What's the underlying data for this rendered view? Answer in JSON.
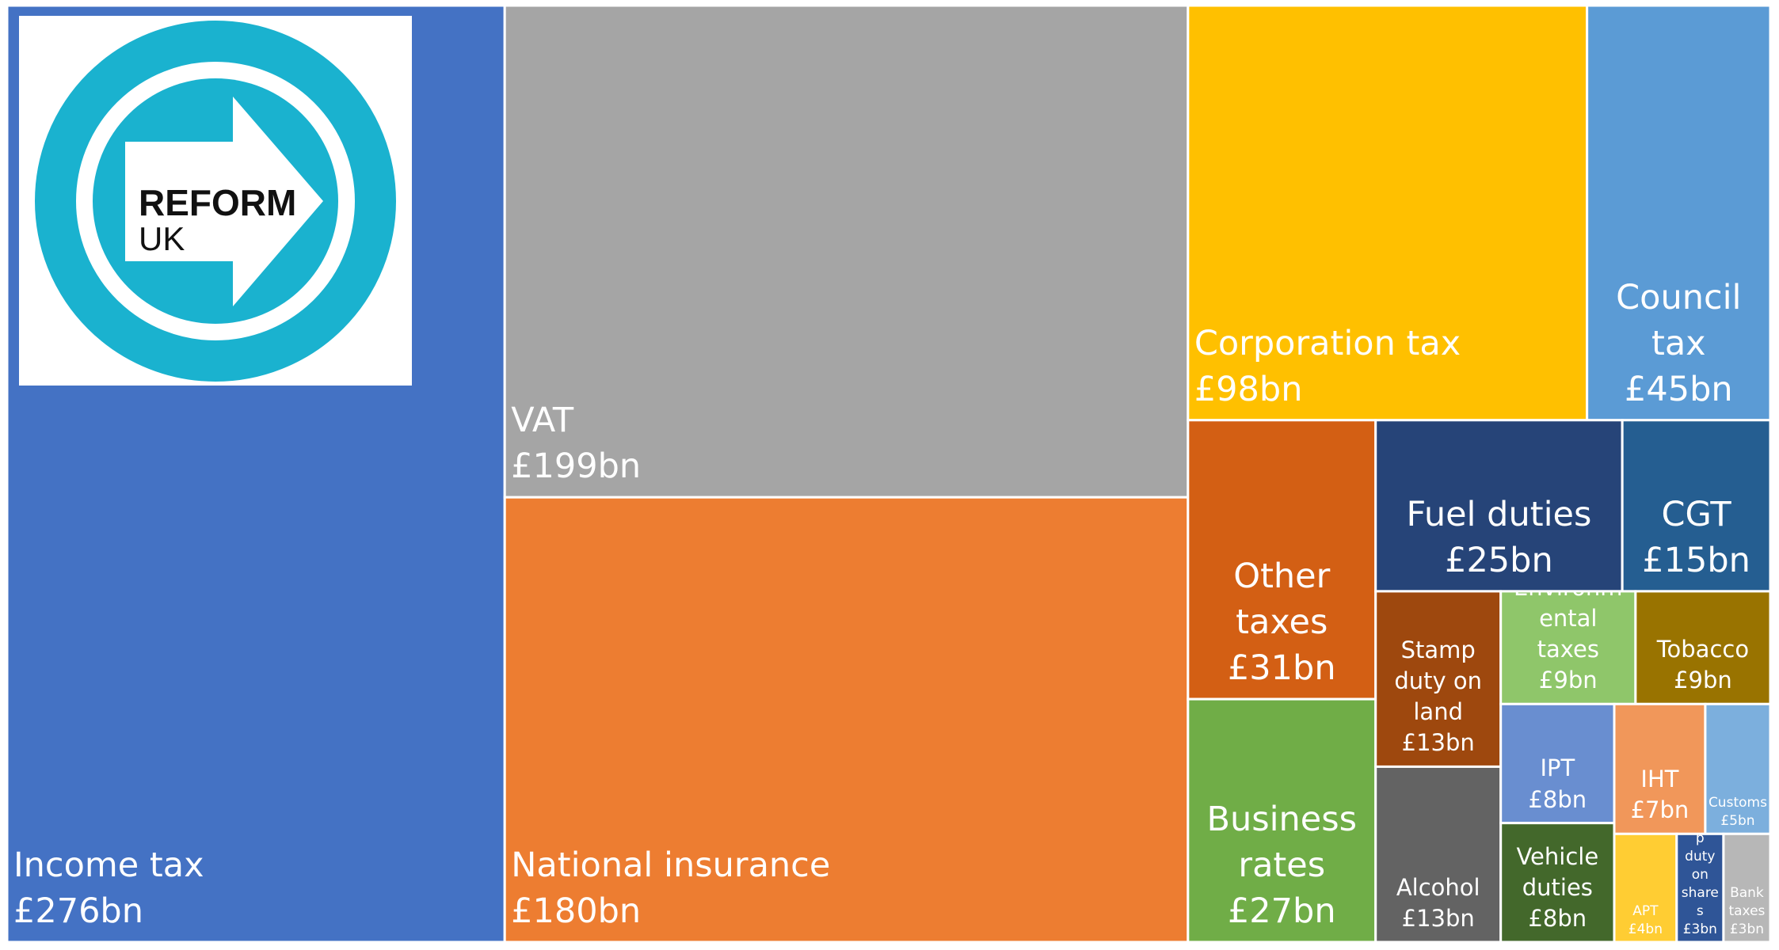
{
  "chart_data": {
    "type": "treemap",
    "logo_text": [
      "REFORM",
      "UK"
    ],
    "categories": [
      "Income tax",
      "VAT",
      "National insurance",
      "Corporation tax",
      "Council tax",
      "Other taxes",
      "Business rates",
      "Fuel duties",
      "CGT",
      "Stamp duty on land",
      "Alcohol",
      "Environmental taxes",
      "Tobacco",
      "IPT",
      "Vehicle duties",
      "IHT",
      "Customs",
      "APT",
      "Stamp duty on shares",
      "Bank taxes"
    ],
    "values": [
      276,
      199,
      180,
      98,
      45,
      31,
      27,
      25,
      15,
      13,
      13,
      9,
      9,
      8,
      8,
      7,
      5,
      4,
      3,
      3
    ],
    "value_labels": [
      "£276bn",
      "£199bn",
      "£180bn",
      "£98bn",
      "£45bn",
      "£31bn",
      "£27bn",
      "£25bn",
      "£15bn",
      "£13bn",
      "£13bn",
      "£9bn",
      "£9bn",
      "£8bn",
      "£8bn",
      "£7bn",
      "£5bn",
      "£4bn",
      "£3bn",
      "£3bn"
    ],
    "colors": [
      "#4472c4",
      "#a5a5a5",
      "#ed7d31",
      "#ffc000",
      "#5b9bd5",
      "#d35f14",
      "#70ad47",
      "#264478",
      "#255e91",
      "#9e480e",
      "#636363",
      "#8fc66a",
      "#997300",
      "#698ed0",
      "#43682b",
      "#f1975a",
      "#7cafdd",
      "#ffcd33",
      "#2f5597",
      "#b7b7b7"
    ]
  }
}
